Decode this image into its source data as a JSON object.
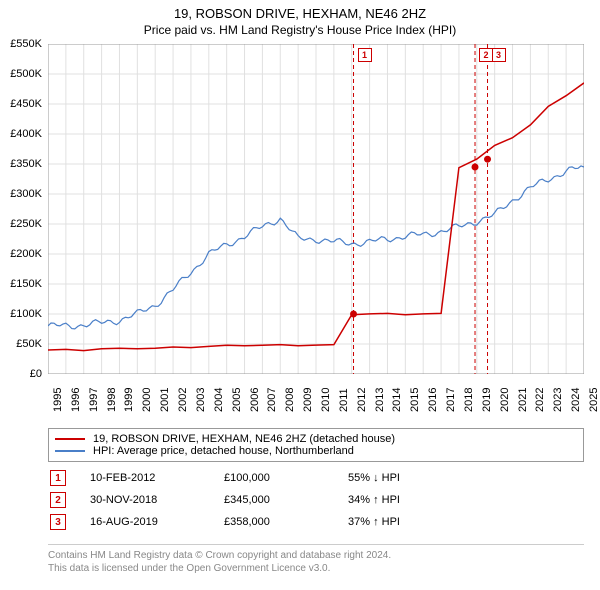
{
  "title_line1": "19, ROBSON DRIVE, HEXHAM, NE46 2HZ",
  "title_line2": "Price paid vs. HM Land Registry's House Price Index (HPI)",
  "chart": {
    "type": "line",
    "background_color": "#ffffff",
    "grid_color": "#e0e0e0",
    "border_color": "#999999",
    "label_fontsize": 11,
    "title_fontsize": 13,
    "subtitle_fontsize": 12,
    "x_years": [
      1995,
      1996,
      1997,
      1998,
      1999,
      2000,
      2001,
      2002,
      2003,
      2004,
      2005,
      2006,
      2007,
      2008,
      2009,
      2010,
      2011,
      2012,
      2013,
      2014,
      2015,
      2016,
      2017,
      2018,
      2019,
      2020,
      2021,
      2022,
      2023,
      2024,
      2025
    ],
    "ylim": [
      0,
      550000
    ],
    "ytick_step": 50000,
    "ytick_labels": [
      "£0",
      "£50K",
      "£100K",
      "£150K",
      "£200K",
      "£250K",
      "£300K",
      "£350K",
      "£400K",
      "£450K",
      "£500K",
      "£550K"
    ],
    "series": [
      {
        "name": "property",
        "color": "#cc0000",
        "line_width": 1.5,
        "data_yearly": [
          40000,
          40000,
          40000,
          42000,
          42000,
          43000,
          43000,
          44000,
          45000,
          46000,
          47000,
          48000,
          48000,
          48000,
          48000,
          48000,
          48000,
          100000,
          100000,
          100000,
          100000,
          100000,
          100000,
          345000,
          358000,
          380000,
          395000,
          415000,
          445000,
          465000,
          485000
        ],
        "sale_points": [
          {
            "year": 2012.1,
            "value": 100000
          },
          {
            "year": 2018.9,
            "value": 345000
          },
          {
            "year": 2019.6,
            "value": 358000
          }
        ],
        "point_color": "#cc0000"
      },
      {
        "name": "hpi",
        "color": "#4a7fc8",
        "line_width": 1.2,
        "data_yearly": [
          80000,
          80000,
          82000,
          85000,
          90000,
          100000,
          115000,
          140000,
          170000,
          200000,
          215000,
          230000,
          245000,
          260000,
          225000,
          225000,
          220000,
          218000,
          220000,
          225000,
          230000,
          232000,
          238000,
          245000,
          255000,
          265000,
          290000,
          310000,
          325000,
          338000,
          345000
        ]
      }
    ],
    "event_lines": [
      {
        "label": "1",
        "year": 2012.1,
        "color": "#cc0000",
        "dash": "4,3"
      },
      {
        "label": "2",
        "year": 2018.9,
        "color": "#cc0000",
        "dash": "4,3"
      },
      {
        "label": "3",
        "year": 2019.6,
        "color": "#cc0000",
        "dash": "4,3"
      }
    ]
  },
  "legend": [
    {
      "color": "#cc0000",
      "text": "19, ROBSON DRIVE, HEXHAM, NE46 2HZ (detached house)"
    },
    {
      "color": "#4a7fc8",
      "text": "HPI: Average price, detached house, Northumberland"
    }
  ],
  "marker_rows": [
    {
      "n": "1",
      "date": "10-FEB-2012",
      "price": "£100,000",
      "hpi": "55% ↓ HPI",
      "color": "#cc0000"
    },
    {
      "n": "2",
      "date": "30-NOV-2018",
      "price": "£345,000",
      "hpi": "34% ↑ HPI",
      "color": "#cc0000"
    },
    {
      "n": "3",
      "date": "16-AUG-2019",
      "price": "£358,000",
      "hpi": "37% ↑ HPI",
      "color": "#cc0000"
    }
  ],
  "footer_line1": "Contains HM Land Registry data © Crown copyright and database right 2024.",
  "footer_line2": "This data is licensed under the Open Government Licence v3.0."
}
